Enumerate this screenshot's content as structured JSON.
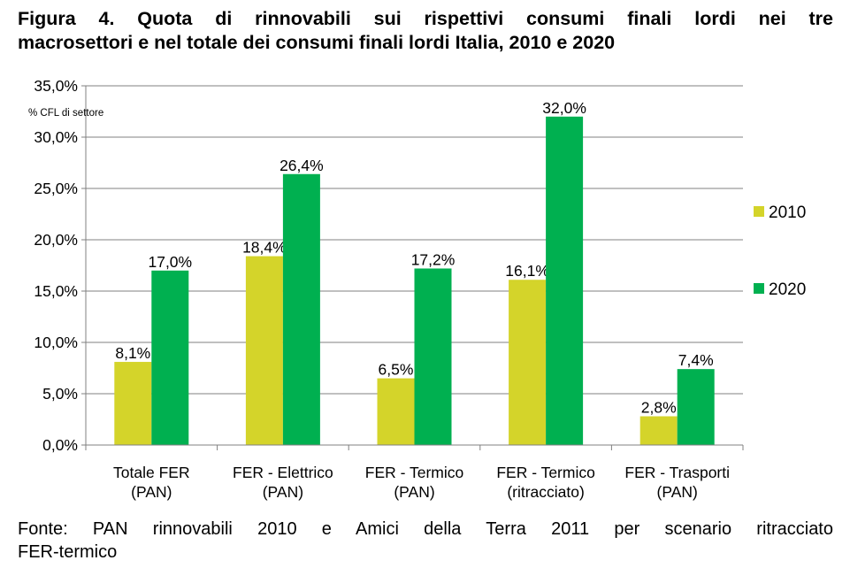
{
  "title_lines": [
    "Figura 4. Quota di rinnovabili sui rispettivi consumi finali lordi nei tre",
    "macrosettori e nel totale dei consumi finali lordi Italia, 2010 e 2020"
  ],
  "source_lines": [
    "Fonte: PAN rinnovabili 2010 e Amici della Terra 2011 per scenario ritracciato",
    "FER-termico"
  ],
  "colors": {
    "s2010": "#d4d42a",
    "s2020": "#00b050",
    "grid": "#808080"
  },
  "chart_data": {
    "type": "bar",
    "unit_note": "% CFL di settore",
    "categories": [
      [
        "Totale FER",
        "(PAN)"
      ],
      [
        "FER - Elettrico",
        "(PAN)"
      ],
      [
        "FER - Termico",
        "(PAN)"
      ],
      [
        "FER - Termico",
        "(ritracciato)"
      ],
      [
        "FER - Trasporti",
        "(PAN)"
      ]
    ],
    "series": [
      {
        "name": "2010",
        "values": [
          8.1,
          18.4,
          6.5,
          16.1,
          2.8
        ],
        "labels": [
          "8,1%",
          "18,4%",
          "6,5%",
          "16,1%",
          "2,8%"
        ]
      },
      {
        "name": "2020",
        "values": [
          17.0,
          26.4,
          17.2,
          32.0,
          7.4
        ],
        "labels": [
          "17,0%",
          "26,4%",
          "17,2%",
          "32,0%",
          "7,4%"
        ]
      }
    ],
    "yticks": [
      0,
      5,
      10,
      15,
      20,
      25,
      30,
      35
    ],
    "ytick_labels": [
      "0,0%",
      "5,0%",
      "10,0%",
      "15,0%",
      "20,0%",
      "25,0%",
      "30,0%",
      "35,0%"
    ],
    "ylim": [
      0,
      35
    ],
    "legend": [
      "2010",
      "2020"
    ],
    "legend_position": "right"
  }
}
